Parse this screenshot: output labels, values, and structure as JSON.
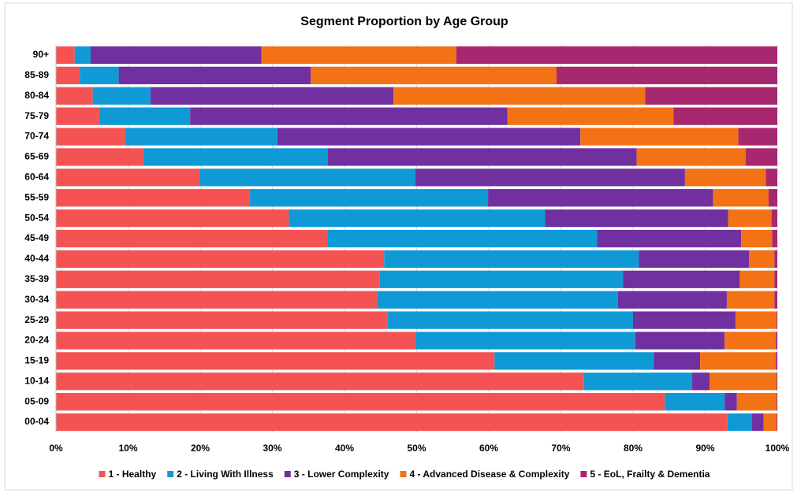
{
  "chart_data": {
    "type": "stacked_barh",
    "title": "Segment Proportion  by Age Group",
    "categories": [
      "90+",
      "85-89",
      "80-84",
      "75-79",
      "70-74",
      "65-69",
      "60-64",
      "55-59",
      "50-54",
      "45-49",
      "40-44",
      "35-39",
      "30-34",
      "25-29",
      "20-24",
      "15-19",
      "10-14",
      "05-09",
      "00-04"
    ],
    "series": [
      {
        "name": "1 - Healthy",
        "color": "#f55353",
        "values": [
          2.6,
          3.3,
          5.1,
          6.0,
          9.6,
          12.1,
          19.9,
          26.8,
          32.3,
          37.7,
          45.5,
          44.9,
          44.5,
          46.0,
          49.8,
          60.8,
          73.2,
          84.4,
          93.1
        ]
      },
      {
        "name": "2 - Living With Illness",
        "color": "#0f9ad6",
        "values": [
          2.2,
          5.4,
          8.0,
          12.6,
          21.1,
          25.6,
          29.9,
          33.1,
          35.5,
          37.3,
          35.3,
          33.7,
          33.4,
          34.0,
          30.5,
          22.1,
          15.0,
          8.3,
          3.4
        ]
      },
      {
        "name": "3 - Lower Complexity",
        "color": "#7030a0",
        "values": [
          23.7,
          26.6,
          33.7,
          44.0,
          42.0,
          42.8,
          37.4,
          31.2,
          25.4,
          20.0,
          15.3,
          16.2,
          15.1,
          14.2,
          12.4,
          6.4,
          2.4,
          1.7,
          1.6
        ]
      },
      {
        "name": "4 - Advanced Disease & Complexity",
        "color": "#f47216",
        "values": [
          27.0,
          34.1,
          34.9,
          23.0,
          21.9,
          15.1,
          11.2,
          7.7,
          6.0,
          4.3,
          3.5,
          4.8,
          6.6,
          5.7,
          7.1,
          10.5,
          9.3,
          5.5,
          1.8
        ]
      },
      {
        "name": "5 - EoL, Frailty & Dementia",
        "color": "#a7286f",
        "values": [
          44.5,
          30.6,
          18.3,
          14.4,
          5.4,
          4.4,
          1.6,
          1.2,
          0.8,
          0.7,
          0.4,
          0.4,
          0.4,
          0.1,
          0.2,
          0.2,
          0.1,
          0.1,
          0.1
        ]
      }
    ],
    "xlim": [
      0,
      100
    ],
    "xticks": [
      {
        "value": 0,
        "label": "0%"
      },
      {
        "value": 10,
        "label": "10%"
      },
      {
        "value": 20,
        "label": "20%"
      },
      {
        "value": 30,
        "label": "30%"
      },
      {
        "value": 40,
        "label": "40%"
      },
      {
        "value": 50,
        "label": "50%"
      },
      {
        "value": 60,
        "label": "60%"
      },
      {
        "value": 70,
        "label": "70%"
      },
      {
        "value": 80,
        "label": "80%"
      },
      {
        "value": 90,
        "label": "90%"
      },
      {
        "value": 100,
        "label": "100%"
      }
    ],
    "grid": true,
    "legend": "bottom"
  }
}
